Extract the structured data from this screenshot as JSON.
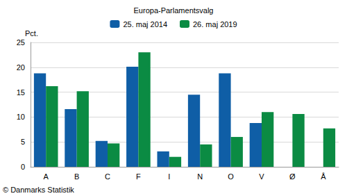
{
  "chart_data": {
    "type": "bar",
    "title": "Europa-Parlamentsvalg",
    "ylabel": "Pct.",
    "annotations": [
      "© Danmarks Statistik"
    ],
    "categories": [
      "A",
      "B",
      "C",
      "F",
      "I",
      "N",
      "O",
      "V",
      "Ø",
      "Å"
    ],
    "series": [
      {
        "name": "25. maj 2014",
        "color": "#0f5ea6",
        "values": [
          18.8,
          11.6,
          5.2,
          20.1,
          3.1,
          14.5,
          18.8,
          8.8,
          null,
          null
        ]
      },
      {
        "name": "26. maj 2019",
        "color": "#0b8b43",
        "values": [
          16.2,
          15.2,
          4.7,
          23.0,
          2.0,
          4.5,
          6.0,
          11.0,
          10.6,
          7.7
        ]
      }
    ],
    "ylim": [
      0,
      25
    ],
    "yticks": [
      0,
      5,
      10,
      15,
      20,
      25
    ],
    "grid": true,
    "legend": "top"
  }
}
